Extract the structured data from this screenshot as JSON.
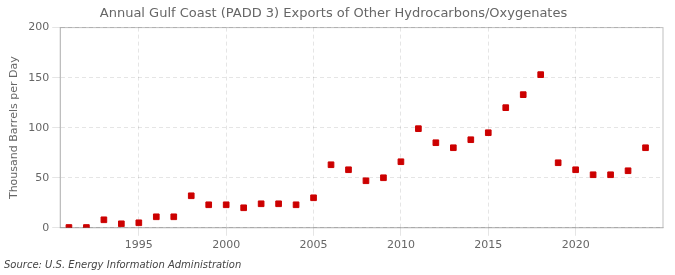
{
  "chart_data": {
    "type": "scatter",
    "title": "Annual Gulf Coast (PADD 3) Exports of Other Hydrocarbons/Oxygenates",
    "ylabel": "Thousand Barrels per Day",
    "annotation": "Source: U.S. Energy Information Administration",
    "x": [
      1991,
      1992,
      1993,
      1994,
      1995,
      1996,
      1997,
      1998,
      1999,
      2000,
      2001,
      2002,
      2003,
      2004,
      2005,
      2006,
      2007,
      2008,
      2009,
      2010,
      2011,
      2012,
      2013,
      2014,
      2015,
      2016,
      2017,
      2018,
      2019,
      2020,
      2021,
      2022,
      2023,
      2024
    ],
    "values": [
      0.3,
      0.3,
      8,
      4,
      5,
      11,
      11,
      32,
      23,
      23,
      20,
      24,
      24,
      23,
      30,
      63,
      58,
      47,
      50,
      66,
      99,
      85,
      80,
      88,
      95,
      120,
      133,
      153,
      65,
      58,
      53,
      53,
      57,
      80
    ],
    "color": "#cc0000",
    "marker": "square",
    "xlim": [
      1990.5,
      2025
    ],
    "xticks": [
      1995,
      2000,
      2005,
      2010,
      2015,
      2020
    ],
    "ylim": [
      0,
      200
    ],
    "yticks": [
      0,
      50,
      100,
      150,
      200
    ],
    "grid": true
  }
}
